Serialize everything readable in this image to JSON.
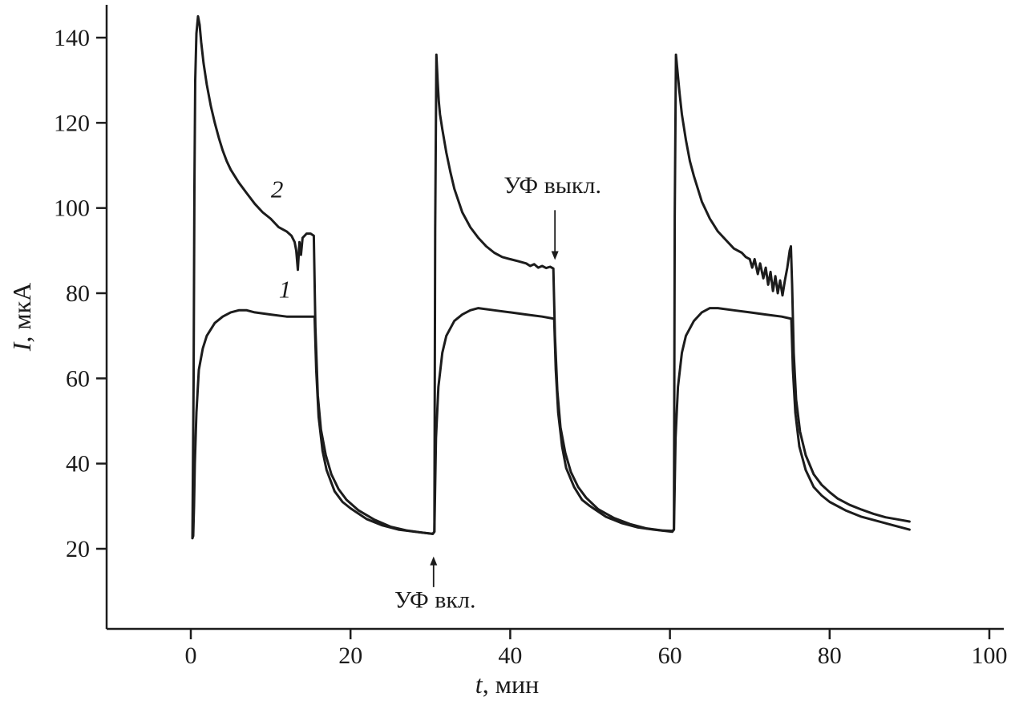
{
  "figure": {
    "background": "#ffffff",
    "ink": "#1c1c1c",
    "curve_stroke_width": 3
  },
  "chart_data": {
    "type": "line",
    "title": "",
    "xlabel": "t, мин",
    "xlabel_parts": {
      "var": "t",
      "rest": ", мин"
    },
    "ylabel": "I, мкА",
    "ylabel_parts": {
      "var": "I",
      "rest": ", мкА"
    },
    "xlim": [
      0,
      100
    ],
    "ylim": [
      10,
      148
    ],
    "x_ticks": [
      0,
      20,
      40,
      60,
      80,
      100
    ],
    "y_ticks": [
      20,
      40,
      60,
      80,
      100,
      120,
      140
    ],
    "grid": false,
    "legend_position": "none",
    "description": "Photocurrent response to UV on/off cycles; curve 1 (lower, saturating at ~75 uA) and curve 2 (upper, peaking at ~145 uA then decaying); three UV cycles of ~15 min on / ~15 min off",
    "series": [
      {
        "name": "1",
        "label_pos": [
          11.8,
          79
        ],
        "points": [
          [
            0.2,
            22.5
          ],
          [
            0.3,
            23
          ],
          [
            0.4,
            30
          ],
          [
            0.5,
            40
          ],
          [
            0.7,
            52
          ],
          [
            1.0,
            62
          ],
          [
            1.5,
            67
          ],
          [
            2,
            70
          ],
          [
            3,
            73
          ],
          [
            4,
            74.5
          ],
          [
            5,
            75.5
          ],
          [
            6,
            76
          ],
          [
            7,
            76
          ],
          [
            8,
            75.5
          ],
          [
            10,
            75
          ],
          [
            12,
            74.5
          ],
          [
            14,
            74.5
          ],
          [
            15.5,
            74.5
          ],
          [
            15.7,
            62
          ],
          [
            16,
            51
          ],
          [
            16.5,
            43
          ],
          [
            17,
            38.5
          ],
          [
            18,
            33.5
          ],
          [
            19,
            31
          ],
          [
            20,
            29.5
          ],
          [
            22,
            27
          ],
          [
            24,
            25.5
          ],
          [
            26,
            24.5
          ],
          [
            28,
            24
          ],
          [
            30.3,
            23.5
          ],
          [
            30.5,
            24
          ],
          [
            30.7,
            46
          ],
          [
            31,
            58
          ],
          [
            31.5,
            66
          ],
          [
            32,
            70
          ],
          [
            33,
            73.5
          ],
          [
            34,
            75
          ],
          [
            35,
            76
          ],
          [
            36,
            76.5
          ],
          [
            38,
            76
          ],
          [
            40,
            75.5
          ],
          [
            42,
            75
          ],
          [
            44,
            74.5
          ],
          [
            45.5,
            74
          ],
          [
            45.7,
            62
          ],
          [
            46,
            52
          ],
          [
            46.5,
            44
          ],
          [
            47,
            39
          ],
          [
            48,
            34.5
          ],
          [
            49,
            31.5
          ],
          [
            50,
            30
          ],
          [
            52,
            27.5
          ],
          [
            54,
            26
          ],
          [
            56,
            25
          ],
          [
            58,
            24.5
          ],
          [
            60.3,
            24
          ],
          [
            60.5,
            24.5
          ],
          [
            60.7,
            46
          ],
          [
            61,
            58
          ],
          [
            61.5,
            66
          ],
          [
            62,
            70
          ],
          [
            63,
            73.5
          ],
          [
            64,
            75.5
          ],
          [
            65,
            76.5
          ],
          [
            66,
            76.5
          ],
          [
            68,
            76
          ],
          [
            70,
            75.5
          ],
          [
            72,
            75
          ],
          [
            74,
            74.5
          ],
          [
            75.2,
            74
          ],
          [
            75.4,
            62
          ],
          [
            75.7,
            52
          ],
          [
            76.2,
            44
          ],
          [
            77,
            38.5
          ],
          [
            78,
            34.5
          ],
          [
            79,
            32.5
          ],
          [
            80,
            31
          ],
          [
            82,
            29
          ],
          [
            84,
            27.5
          ],
          [
            86,
            26.5
          ],
          [
            88,
            25.5
          ],
          [
            90,
            24.5
          ]
        ]
      },
      {
        "name": "2",
        "label_pos": [
          10.8,
          102.5
        ],
        "points": [
          [
            0.2,
            22.5
          ],
          [
            0.35,
            60
          ],
          [
            0.45,
            105
          ],
          [
            0.55,
            130
          ],
          [
            0.7,
            141
          ],
          [
            0.9,
            145
          ],
          [
            1.1,
            143
          ],
          [
            1.3,
            139
          ],
          [
            1.6,
            134
          ],
          [
            2,
            129
          ],
          [
            2.5,
            124
          ],
          [
            3,
            120
          ],
          [
            3.5,
            116.5
          ],
          [
            4,
            113.5
          ],
          [
            4.5,
            111
          ],
          [
            5,
            109
          ],
          [
            6,
            106
          ],
          [
            7,
            103.5
          ],
          [
            8,
            101
          ],
          [
            9,
            99
          ],
          [
            10,
            97.5
          ],
          [
            11,
            95.5
          ],
          [
            12,
            94.5
          ],
          [
            12.6,
            93.5
          ],
          [
            13,
            92
          ],
          [
            13.2,
            90
          ],
          [
            13.4,
            85.5
          ],
          [
            13.6,
            92
          ],
          [
            13.8,
            89
          ],
          [
            14,
            93
          ],
          [
            14.5,
            94
          ],
          [
            15,
            94
          ],
          [
            15.4,
            93.5
          ],
          [
            15.6,
            72
          ],
          [
            15.9,
            56
          ],
          [
            16.3,
            48
          ],
          [
            16.9,
            42
          ],
          [
            17.6,
            37.5
          ],
          [
            18.5,
            34
          ],
          [
            19.5,
            31.5
          ],
          [
            21,
            29
          ],
          [
            23,
            26.8
          ],
          [
            25,
            25.2
          ],
          [
            27,
            24.3
          ],
          [
            29,
            23.8
          ],
          [
            30.3,
            23.5
          ],
          [
            30.5,
            24
          ],
          [
            30.6,
            95
          ],
          [
            30.75,
            136
          ],
          [
            30.9,
            130
          ],
          [
            31.05,
            125
          ],
          [
            31.2,
            122
          ],
          [
            31.5,
            118.5
          ],
          [
            32,
            113
          ],
          [
            32.5,
            108.5
          ],
          [
            33,
            104.5
          ],
          [
            34,
            99
          ],
          [
            35,
            95.5
          ],
          [
            36,
            93
          ],
          [
            37,
            91
          ],
          [
            38,
            89.5
          ],
          [
            39,
            88.5
          ],
          [
            40,
            88
          ],
          [
            41,
            87.5
          ],
          [
            42,
            87
          ],
          [
            42.5,
            86.4
          ],
          [
            43,
            86.8
          ],
          [
            43.5,
            86
          ],
          [
            44,
            86.4
          ],
          [
            44.5,
            85.9
          ],
          [
            45,
            86.2
          ],
          [
            45.4,
            85.8
          ],
          [
            45.6,
            70
          ],
          [
            45.9,
            57
          ],
          [
            46.3,
            48.5
          ],
          [
            46.9,
            42.5
          ],
          [
            47.6,
            38
          ],
          [
            48.5,
            34.5
          ],
          [
            49.5,
            32
          ],
          [
            51,
            29.3
          ],
          [
            53,
            27.2
          ],
          [
            55,
            25.8
          ],
          [
            57,
            24.8
          ],
          [
            59,
            24.3
          ],
          [
            60.3,
            24.2
          ],
          [
            60.5,
            24.5
          ],
          [
            60.6,
            98
          ],
          [
            60.75,
            136
          ],
          [
            60.95,
            132
          ],
          [
            61.2,
            127
          ],
          [
            61.5,
            122
          ],
          [
            62,
            116
          ],
          [
            62.5,
            111
          ],
          [
            63,
            107.5
          ],
          [
            64,
            101.5
          ],
          [
            65,
            97.5
          ],
          [
            66,
            94.5
          ],
          [
            67,
            92.5
          ],
          [
            68,
            90.5
          ],
          [
            69,
            89.5
          ],
          [
            69.5,
            88.5
          ],
          [
            70,
            88
          ],
          [
            70.3,
            86
          ],
          [
            70.6,
            88
          ],
          [
            71,
            84.5
          ],
          [
            71.3,
            87
          ],
          [
            71.7,
            83.5
          ],
          [
            72,
            86
          ],
          [
            72.3,
            82
          ],
          [
            72.6,
            85
          ],
          [
            72.9,
            80.5
          ],
          [
            73.2,
            84
          ],
          [
            73.5,
            80
          ],
          [
            73.8,
            83
          ],
          [
            74.1,
            79.5
          ],
          [
            74.4,
            83
          ],
          [
            74.7,
            86
          ],
          [
            75,
            90
          ],
          [
            75.15,
            91
          ],
          [
            75.3,
            82
          ],
          [
            75.5,
            66
          ],
          [
            75.8,
            55
          ],
          [
            76.3,
            47.5
          ],
          [
            77,
            42
          ],
          [
            78,
            37.5
          ],
          [
            79,
            35
          ],
          [
            80,
            33.3
          ],
          [
            81,
            31.8
          ],
          [
            82.5,
            30.3
          ],
          [
            84,
            29.2
          ],
          [
            85.5,
            28.2
          ],
          [
            87,
            27.4
          ],
          [
            88.5,
            26.9
          ],
          [
            90,
            26.4
          ]
        ]
      }
    ],
    "annotations": [
      {
        "text": "УФ выкл.",
        "text_pos": [
          45.3,
          103.5
        ],
        "arrow_from": [
          45.6,
          99.5
        ],
        "arrow_to": [
          45.6,
          87.8
        ],
        "direction": "down"
      },
      {
        "text": "УФ вкл.",
        "text_pos": [
          30.6,
          6.2
        ],
        "arrow_from": [
          30.4,
          11.0
        ],
        "arrow_to": [
          30.4,
          18.2
        ],
        "direction": "up"
      }
    ]
  }
}
